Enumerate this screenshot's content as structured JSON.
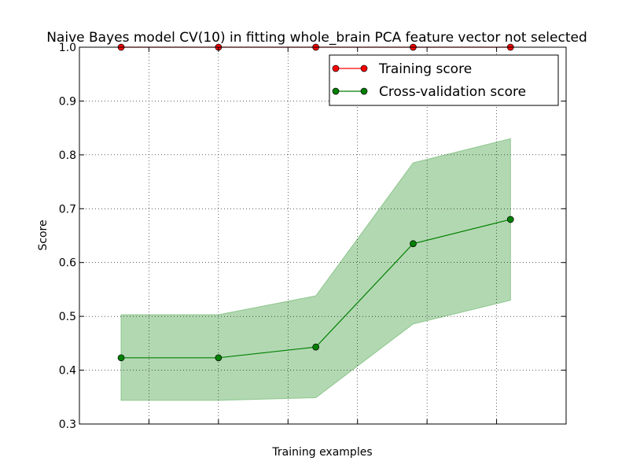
{
  "chart_data": {
    "type": "line",
    "title": "Naive Bayes model CV(10) in fitting whole_brain PCA feature vector not selected",
    "xlabel": "Training examples",
    "ylabel": "Score",
    "xlim": [
      0,
      70
    ],
    "ylim": [
      0.3,
      1.0
    ],
    "x_ticks": [
      10,
      20,
      30,
      40,
      50,
      60,
      70
    ],
    "y_ticks": [
      0.3,
      0.4,
      0.5,
      0.6,
      0.7,
      0.8,
      0.9,
      1.0
    ],
    "y_tick_labels": [
      "0.3",
      "0.4",
      "0.5",
      "0.6",
      "0.7",
      "0.8",
      "0.9",
      "1.0"
    ],
    "grid": true,
    "legend_position": "top-right",
    "x": [
      6,
      20,
      34,
      48,
      62
    ],
    "series": [
      {
        "name": "Training score",
        "color": "#ff0000",
        "values": [
          1.0,
          1.0,
          1.0,
          1.0,
          1.0
        ],
        "lower": [
          1.0,
          1.0,
          1.0,
          1.0,
          1.0
        ],
        "upper": [
          1.0,
          1.0,
          1.0,
          1.0,
          1.0
        ]
      },
      {
        "name": "Cross-validation score",
        "color": "#008000",
        "band_color": "#b2d8b2",
        "values": [
          0.423,
          0.423,
          0.443,
          0.635,
          0.68
        ],
        "lower": [
          0.344,
          0.344,
          0.349,
          0.486,
          0.53
        ],
        "upper": [
          0.503,
          0.503,
          0.538,
          0.785,
          0.83
        ]
      }
    ]
  }
}
